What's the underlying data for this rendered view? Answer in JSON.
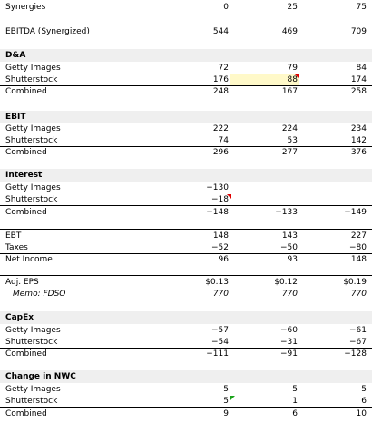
{
  "rows": [
    {
      "label": "Synergies",
      "v": [
        "0",
        "25",
        "75"
      ]
    },
    {
      "label": "EBITDA (Synergized)",
      "v": [
        "544",
        "469",
        "709"
      ]
    },
    {
      "section": "D&A"
    },
    {
      "label": "Getty Images",
      "v": [
        "72",
        "79",
        "84"
      ]
    },
    {
      "label": "Shutterstock",
      "v": [
        "176",
        "88",
        "174"
      ]
    },
    {
      "label": "Combined",
      "v": [
        "248",
        "167",
        "258"
      ]
    },
    {
      "section": "EBIT"
    },
    {
      "label": "Getty Images",
      "v": [
        "222",
        "224",
        "234"
      ]
    },
    {
      "label": "Shutterstock",
      "v": [
        "74",
        "53",
        "142"
      ]
    },
    {
      "label": "Combined",
      "v": [
        "296",
        "277",
        "376"
      ]
    },
    {
      "section": "Interest"
    },
    {
      "label": "Getty Images",
      "v": [
        "−130",
        "",
        ""
      ]
    },
    {
      "label": "Shutterstock",
      "v": [
        "−18",
        "",
        ""
      ]
    },
    {
      "label": "Combined",
      "v": [
        "−148",
        "−133",
        "−149"
      ]
    },
    {
      "label": "EBT",
      "v": [
        "148",
        "143",
        "227"
      ]
    },
    {
      "label": "Taxes",
      "v": [
        "−52",
        "−50",
        "−80"
      ]
    },
    {
      "label": "Net Income",
      "v": [
        "96",
        "93",
        "148"
      ]
    },
    {
      "label": "Adj. EPS",
      "v": [
        "$0.13",
        "$0.12",
        "$0.19"
      ]
    },
    {
      "label": "Memo: FDSO",
      "v": [
        "770",
        "770",
        "770"
      ]
    },
    {
      "section": "CapEx"
    },
    {
      "label": "Getty Images",
      "v": [
        "−57",
        "−60",
        "−61"
      ]
    },
    {
      "label": "Shutterstock",
      "v": [
        "−54",
        "−31",
        "−67"
      ]
    },
    {
      "label": "Combined",
      "v": [
        "−111",
        "−91",
        "−128"
      ]
    },
    {
      "section": "Change in NWC"
    },
    {
      "label": "Getty Images",
      "v": [
        "5",
        "5",
        "5"
      ]
    },
    {
      "label": "Shutterstock",
      "v": [
        "5",
        "1",
        "6"
      ]
    },
    {
      "label": "Combined",
      "v": [
        "9",
        "6",
        "10"
      ]
    }
  ],
  "colors": {
    "section_band": "#efefef",
    "highlight_cell": "#fff9c9",
    "comment_marker": "#e00000",
    "error_marker": "#1aa31a"
  }
}
